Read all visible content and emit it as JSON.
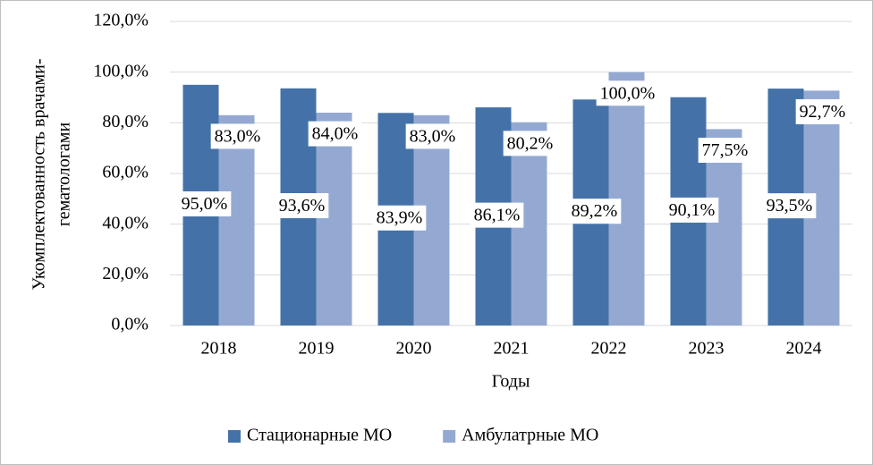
{
  "chart_data": {
    "type": "bar",
    "categories": [
      "2018",
      "2019",
      "2020",
      "2021",
      "2022",
      "2023",
      "2024"
    ],
    "series": [
      {
        "name": "Стационарные МО",
        "color": "#4472a8",
        "values": [
          95.0,
          93.6,
          83.9,
          86.1,
          89.2,
          90.1,
          93.5
        ],
        "value_labels": [
          "95,0%",
          "93,6%",
          "83,9%",
          "86,1%",
          "89,2%",
          "90,1%",
          "93,5%"
        ]
      },
      {
        "name": "Амбулатрные МО",
        "color": "#94a9d2",
        "values": [
          83.0,
          84.0,
          83.0,
          80.2,
          100.0,
          77.5,
          92.7
        ],
        "value_labels": [
          "83,0%",
          "84,0%",
          "83,0%",
          "80,2%",
          "100,0%",
          "77,5%",
          "92,7%"
        ]
      }
    ],
    "xlabel": "Годы",
    "ylabel": [
      "Укомплектованность врачами-",
      "гематологами"
    ],
    "ylim": [
      0,
      120
    ],
    "yticks": [
      {
        "value": 0,
        "label": "0,0%"
      },
      {
        "value": 20,
        "label": "20,0%"
      },
      {
        "value": 40,
        "label": "40,0%"
      },
      {
        "value": 60,
        "label": "60,0%"
      },
      {
        "value": 80,
        "label": "80,0%"
      },
      {
        "value": 100,
        "label": "100,0%"
      },
      {
        "value": 120,
        "label": "120,0%"
      }
    ],
    "grid": true,
    "legend": "bottom"
  }
}
